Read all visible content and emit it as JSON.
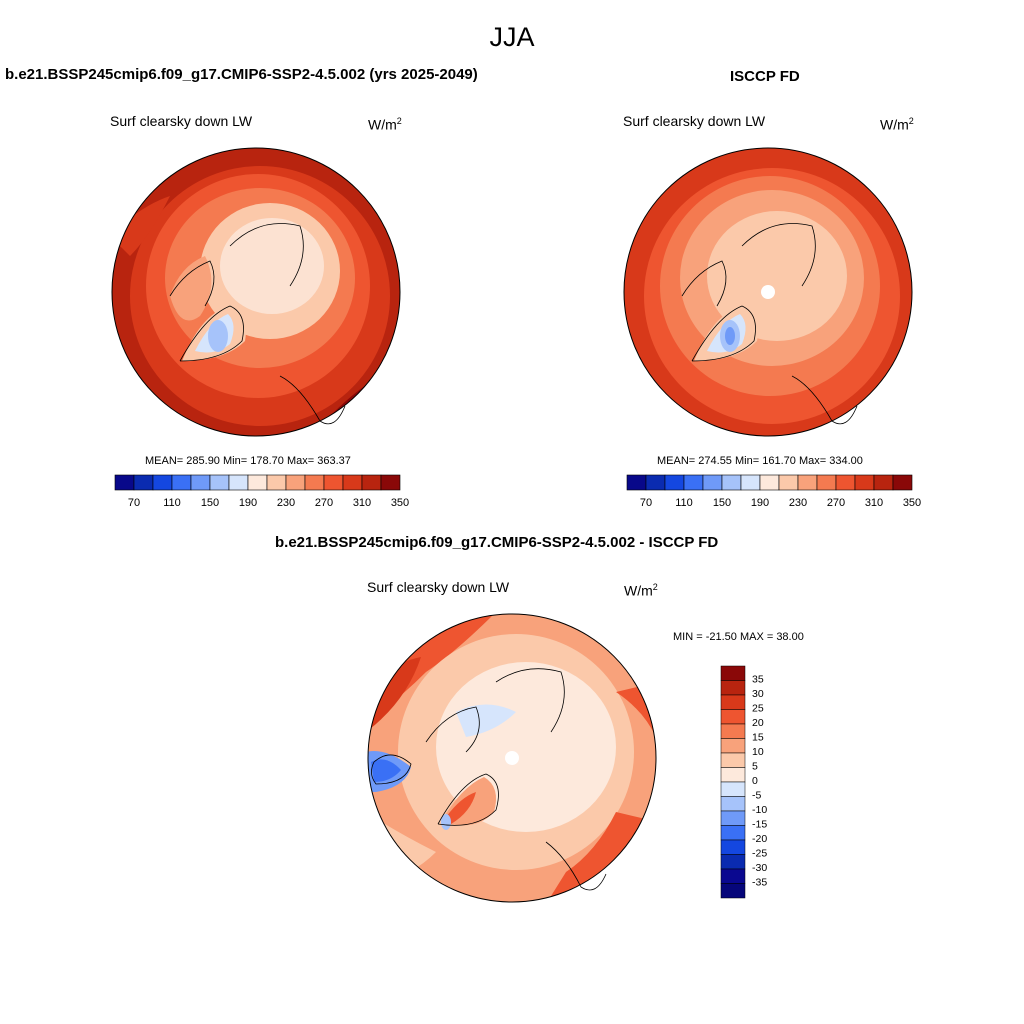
{
  "title": "JJA",
  "panels": [
    {
      "case": "b.e21.BSSP245cmip6.f09_g17.CMIP6-SSP2-4.5.002 (yrs 2025-2049)",
      "variable": "Surf clearsky down LW",
      "units": "W/m",
      "units_sup": "2",
      "stats": {
        "mean_label": "MEAN=",
        "mean": "285.90",
        "min_label": "Min=",
        "min": "178.70",
        "max_label": "Max=",
        "max": "363.37"
      }
    },
    {
      "case": "ISCCP FD",
      "variable": "Surf clearsky down LW",
      "units": "W/m",
      "units_sup": "2",
      "stats": {
        "mean_label": "MEAN=",
        "mean": "274.55",
        "min_label": "Min=",
        "min": "161.70",
        "max_label": "Max=",
        "max": "334.00"
      }
    },
    {
      "case": "b.e21.BSSP245cmip6.f09_g17.CMIP6-SSP2-4.5.002 - ISCCP FD",
      "variable": "Surf clearsky down LW",
      "units": "W/m",
      "units_sup": "2",
      "stats_text": "MIN = -21.50 MAX =  38.00"
    }
  ],
  "colorbar_abs": {
    "colors": [
      "#08088a",
      "#0a2bb0",
      "#1447e0",
      "#3a70f5",
      "#6f9af8",
      "#a6c3fa",
      "#d6e5fc",
      "#fde9dc",
      "#fbc9aa",
      "#f8a27b",
      "#f47a50",
      "#ee5530",
      "#d8391a",
      "#b8240f",
      "#8a0808"
    ],
    "ticks": [
      "70",
      "110",
      "150",
      "190",
      "230",
      "270",
      "310",
      "350"
    ]
  },
  "colorbar_diff": {
    "colors": [
      "#8a0808",
      "#b8240f",
      "#d8391a",
      "#ee5530",
      "#f47a50",
      "#f8a27b",
      "#fbc9aa",
      "#fde9dc",
      "#d6e5fc",
      "#a6c3fa",
      "#6f9af8",
      "#3a70f5",
      "#1447e0",
      "#0a2bb0",
      "#0a0890",
      "#06067a"
    ],
    "labels": [
      "35",
      "30",
      "25",
      "20",
      "15",
      "10",
      "5",
      "0",
      "-5",
      "-10",
      "-15",
      "-20",
      "-25",
      "-30",
      "-35"
    ]
  },
  "chart_data": [
    {
      "type": "heatmap",
      "projection": "north polar stereographic",
      "title": "Surf clearsky down LW",
      "units": "W/m2",
      "levels": [
        70,
        90,
        110,
        130,
        150,
        170,
        190,
        210,
        230,
        250,
        270,
        290,
        310,
        330,
        350
      ],
      "mean": 285.9,
      "min": 178.7,
      "max": 363.37
    },
    {
      "type": "heatmap",
      "projection": "north polar stereographic",
      "title": "Surf clearsky down LW",
      "units": "W/m2",
      "levels": [
        70,
        90,
        110,
        130,
        150,
        170,
        190,
        210,
        230,
        250,
        270,
        290,
        310,
        330,
        350
      ],
      "mean": 274.55,
      "min": 161.7,
      "max": 334.0
    },
    {
      "type": "heatmap",
      "projection": "north polar stereographic",
      "title": "Surf clearsky down LW",
      "units": "W/m2",
      "levels": [
        -35,
        -30,
        -25,
        -20,
        -15,
        -10,
        -5,
        0,
        5,
        10,
        15,
        20,
        25,
        30,
        35
      ],
      "min": -21.5,
      "max": 38.0
    }
  ]
}
